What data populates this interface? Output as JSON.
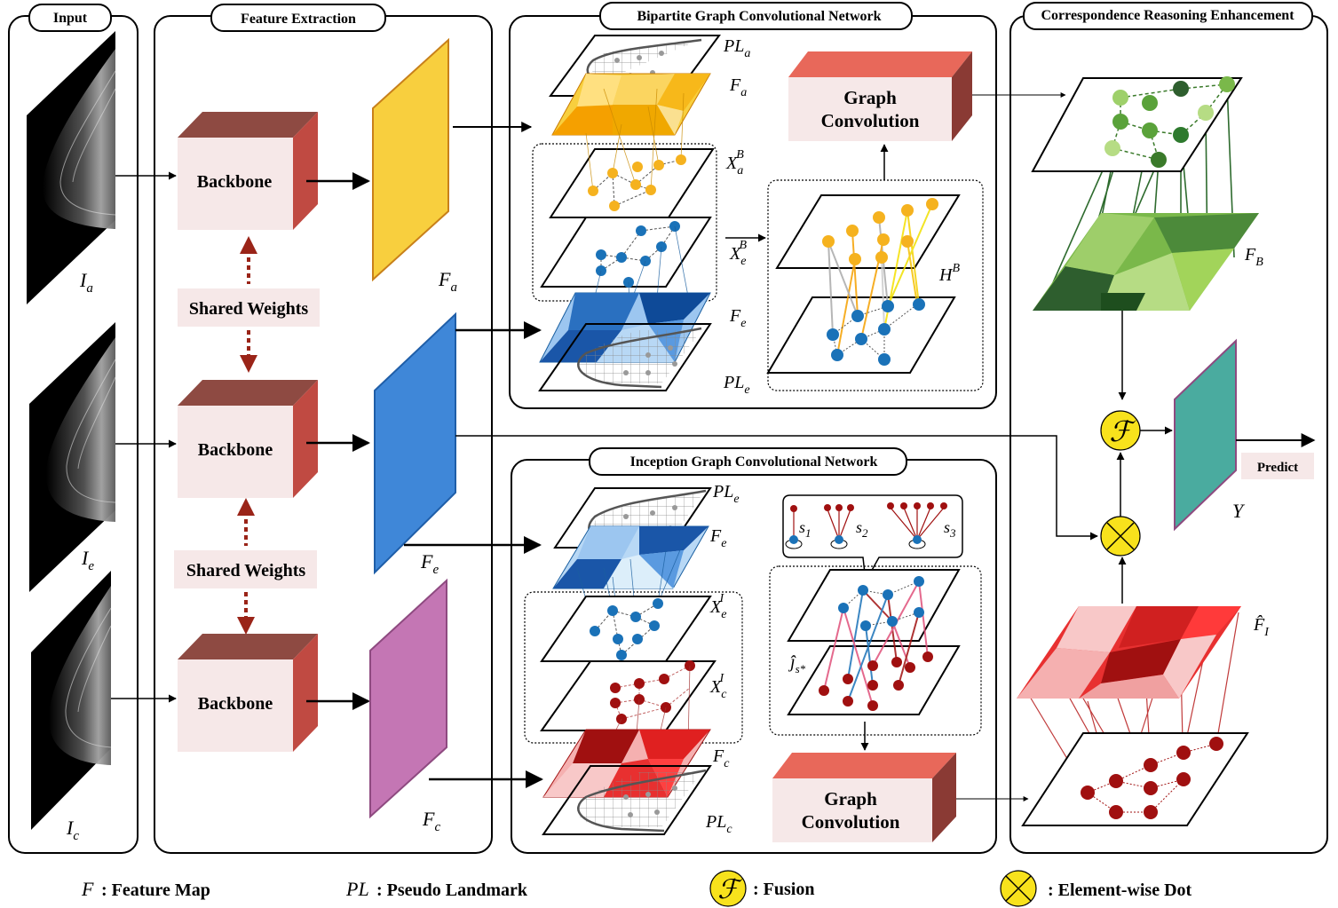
{
  "sections": {
    "input": "Input",
    "feature_extraction": "Feature Extraction",
    "bgcn": "Bipartite Graph Convolutional Network",
    "igcn": "Inception Graph Convolutional Network",
    "cre": "Correspondence Reasoning Enhancement"
  },
  "inputs": [
    {
      "base": "I",
      "sub": "a"
    },
    {
      "base": "I",
      "sub": "e"
    },
    {
      "base": "I",
      "sub": "c"
    }
  ],
  "backbone_label": "Backbone",
  "shared_weights_label": "Shared Weights",
  "feature_maps": [
    {
      "base": "F",
      "sub": "a",
      "color": "#f8cf3e"
    },
    {
      "base": "F",
      "sub": "e",
      "color": "#3f87d8"
    },
    {
      "base": "F",
      "sub": "c",
      "color": "#c476b4"
    }
  ],
  "bgcn_labels": {
    "pla": {
      "base": "PL",
      "sub": "a"
    },
    "fa": {
      "base": "F",
      "sub": "a"
    },
    "xab": {
      "base": "X",
      "sub": "a",
      "sup": "B"
    },
    "xeb": {
      "base": "X",
      "sub": "e",
      "sup": "B"
    },
    "fe": {
      "base": "F",
      "sub": "e"
    },
    "ple": {
      "base": "PL",
      "sub": "e"
    },
    "hb": {
      "base": "H",
      "sup": "B"
    }
  },
  "igcn_labels": {
    "ple": {
      "base": "PL",
      "sub": "e"
    },
    "fe": {
      "base": "F",
      "sub": "e"
    },
    "xei": {
      "base": "X",
      "sub": "e",
      "sup": "I"
    },
    "xci": {
      "base": "X",
      "sub": "c",
      "sup": "I"
    },
    "fc": {
      "base": "F",
      "sub": "c"
    },
    "plc": {
      "base": "PL",
      "sub": "c"
    },
    "jhat": {
      "base": "ĵ",
      "sub": "s*"
    },
    "s1": {
      "base": "s",
      "sub": "1"
    },
    "s2": {
      "base": "s",
      "sub": "2"
    },
    "s3": {
      "base": "s",
      "sub": "3"
    }
  },
  "graph_convolution_label": [
    "Graph",
    "Convolution"
  ],
  "cre_labels": {
    "fb": {
      "base": "F",
      "sub": "B"
    },
    "fi": {
      "base": "F̂",
      "sub": "I"
    },
    "y": {
      "base": "Y"
    },
    "fusion_symbol": "ℱ",
    "predict": "Predict"
  },
  "legend": {
    "f_symbol": "F",
    "f_text": ": Feature Map",
    "pl_symbol": "PL",
    "pl_text": ": Pseudo Landmark",
    "fusion_symbol": "ℱ",
    "fusion_text": ": Fusion",
    "dot_text": ": Element-wise Dot"
  },
  "colors": {
    "backbone_front": "#f6e8e8",
    "backbone_top": "#8e4a42",
    "backbone_side": "#c04a42",
    "gc_top": "#e8685a",
    "gc_side": "#8a3a34",
    "shared_arrow": "#9a2418",
    "orange_node": "#f5b21f",
    "blue_node": "#1a72b8",
    "red_node": "#a01010",
    "green_node": "#5aa23a",
    "fusion_yellow": "#f8e21c",
    "teal_map": "#4aab9f"
  }
}
